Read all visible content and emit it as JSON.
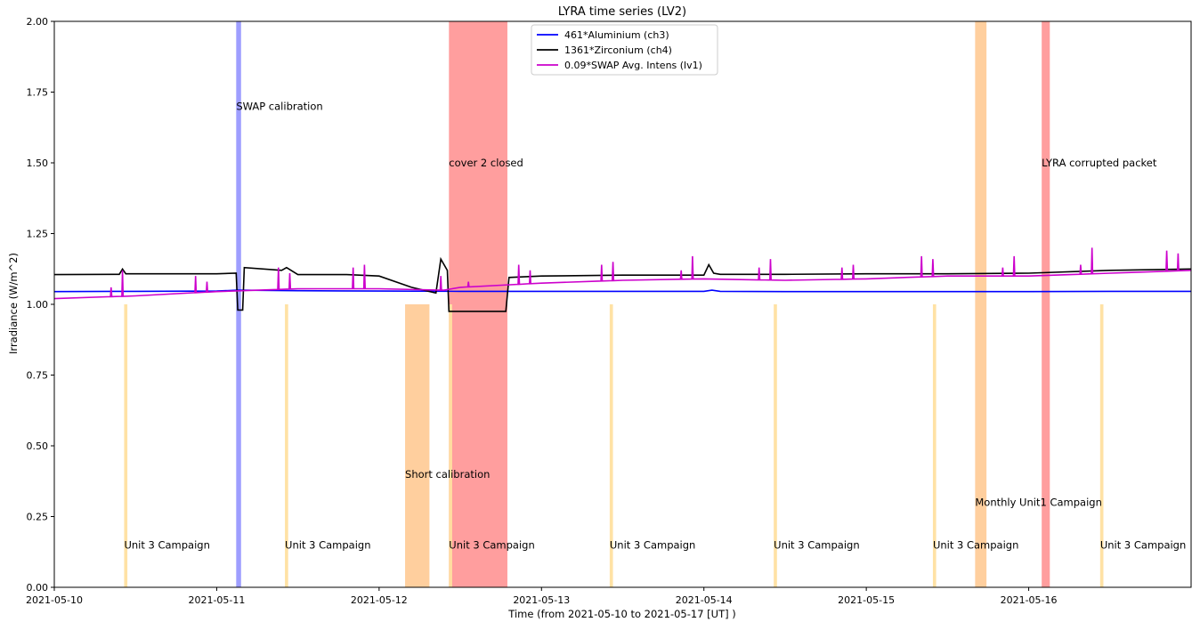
{
  "chart_data": {
    "type": "line",
    "title": "LYRA time series (LV2)",
    "xlabel": "Time (from 2021-05-10 to 2021-05-17 [UT] )",
    "ylabel": "Irradiance (W/m^2)",
    "xlim_days": [
      0,
      7
    ],
    "ylim": [
      0,
      2.0
    ],
    "x_tick_labels": [
      "2021-05-10",
      "2021-05-11",
      "2021-05-12",
      "2021-05-13",
      "2021-05-14",
      "2021-05-15",
      "2021-05-16"
    ],
    "x_tick_days": [
      0,
      1,
      2,
      3,
      4,
      5,
      6
    ],
    "y_ticks": [
      0.0,
      0.25,
      0.5,
      0.75,
      1.0,
      1.25,
      1.5,
      1.75,
      2.0
    ],
    "y_tick_labels": [
      "0.00",
      "0.25",
      "0.50",
      "0.75",
      "1.00",
      "1.25",
      "1.50",
      "1.75",
      "2.00"
    ],
    "legend_position": "top-center",
    "colors": {
      "aluminium": "#0000ff",
      "zirconium": "#000000",
      "swap": "#cc00cc",
      "swap_calibration": "#9999ff",
      "cover_closed": "#ff9999",
      "campaign": "#ffcc99",
      "unit3": "#ffe0a0"
    },
    "series": [
      {
        "name": "461*Aluminium (ch3)",
        "color": "#0000ff",
        "x": [
          0,
          0.5,
          1.0,
          1.13,
          1.5,
          2.0,
          2.5,
          3.0,
          3.5,
          4.0,
          4.05,
          4.1,
          4.5,
          5.0,
          5.5,
          6.0,
          6.5,
          7.0
        ],
        "y": [
          1.045,
          1.046,
          1.047,
          1.05,
          1.048,
          1.047,
          1.046,
          1.046,
          1.046,
          1.046,
          1.05,
          1.046,
          1.045,
          1.045,
          1.045,
          1.045,
          1.046,
          1.046
        ]
      },
      {
        "name": "1361*Zirconium (ch4)",
        "color": "#000000",
        "x": [
          0,
          0.4,
          0.42,
          0.44,
          0.6,
          1.0,
          1.12,
          1.13,
          1.16,
          1.17,
          1.4,
          1.43,
          1.5,
          1.8,
          2.0,
          2.2,
          2.35,
          2.38,
          2.42,
          2.43,
          2.44,
          2.78,
          2.8,
          3.0,
          3.5,
          4.0,
          4.03,
          4.06,
          4.1,
          4.5,
          5.0,
          5.5,
          6.0,
          6.5,
          7.0
        ],
        "y": [
          1.105,
          1.106,
          1.125,
          1.108,
          1.108,
          1.108,
          1.11,
          0.98,
          0.98,
          1.13,
          1.12,
          1.13,
          1.105,
          1.105,
          1.1,
          1.06,
          1.04,
          1.16,
          1.12,
          0.975,
          0.975,
          0.975,
          1.095,
          1.1,
          1.103,
          1.103,
          1.14,
          1.11,
          1.106,
          1.106,
          1.108,
          1.108,
          1.11,
          1.12,
          1.125
        ]
      },
      {
        "name": "0.09*SWAP Avg. Intens (lv1)",
        "color": "#cc00cc",
        "x": [
          0,
          0.5,
          1.0,
          1.5,
          2.0,
          2.4,
          2.5,
          3.0,
          3.5,
          4.0,
          4.5,
          5.0,
          5.5,
          6.0,
          6.5,
          7.0
        ],
        "y": [
          1.02,
          1.03,
          1.045,
          1.055,
          1.055,
          1.05,
          1.06,
          1.075,
          1.085,
          1.09,
          1.085,
          1.09,
          1.1,
          1.1,
          1.11,
          1.12
        ],
        "spikes_x": [
          0.35,
          0.42,
          0.87,
          0.94,
          1.38,
          1.45,
          1.84,
          1.91,
          2.38,
          2.55,
          2.86,
          2.93,
          3.37,
          3.44,
          3.86,
          3.93,
          4.34,
          4.41,
          4.85,
          4.92,
          5.34,
          5.41,
          5.84,
          5.91,
          6.32,
          6.39,
          6.85,
          6.92
        ],
        "spikes_y": [
          1.06,
          1.12,
          1.1,
          1.08,
          1.13,
          1.11,
          1.13,
          1.14,
          1.1,
          1.08,
          1.14,
          1.12,
          1.14,
          1.15,
          1.12,
          1.17,
          1.13,
          1.16,
          1.13,
          1.14,
          1.17,
          1.16,
          1.13,
          1.17,
          1.14,
          1.2,
          1.19,
          1.18
        ]
      }
    ],
    "bands": [
      {
        "start": 1.12,
        "end": 1.15,
        "ymin": 0,
        "ymax": 2.0,
        "color": "#9999ff",
        "label": "SWAP calibration",
        "label_y": 1.7
      },
      {
        "start": 2.43,
        "end": 2.79,
        "ymin": 0,
        "ymax": 2.0,
        "color": "#ff9999",
        "label": "cover 2 closed",
        "label_y": 1.5
      },
      {
        "start": 6.08,
        "end": 6.13,
        "ymin": 0,
        "ymax": 2.0,
        "color": "#ff9999",
        "label": "LYRA corrupted packet",
        "label_y": 1.5
      },
      {
        "start": 5.67,
        "end": 5.74,
        "ymin": 0,
        "ymax": 2.0,
        "color": "#ffcc99",
        "label": "Monthly Unit1 Campaign",
        "label_y": 0.3
      },
      {
        "start": 2.16,
        "end": 2.31,
        "ymin": 0,
        "ymax": 1.0,
        "color": "#ffcc99",
        "label": "Short calibration",
        "label_y": 0.4
      },
      {
        "start": 0.43,
        "end": 0.45,
        "ymin": 0,
        "ymax": 1.0,
        "color": "#ffe0a0",
        "label": "Unit 3 Campaign",
        "label_y": 0.15
      },
      {
        "start": 1.42,
        "end": 1.44,
        "ymin": 0,
        "ymax": 1.0,
        "color": "#ffe0a0",
        "label": "Unit 3 Campaign",
        "label_y": 0.15
      },
      {
        "start": 2.43,
        "end": 2.45,
        "ymin": 0,
        "ymax": 1.0,
        "color": "#ffe0a0",
        "label": "Unit 3 Campaign",
        "label_y": 0.15
      },
      {
        "start": 3.42,
        "end": 3.44,
        "ymin": 0,
        "ymax": 1.0,
        "color": "#ffe0a0",
        "label": "Unit 3 Campaign",
        "label_y": 0.15
      },
      {
        "start": 4.43,
        "end": 4.45,
        "ymin": 0,
        "ymax": 1.0,
        "color": "#ffe0a0",
        "label": "Unit 3 Campaign",
        "label_y": 0.15
      },
      {
        "start": 5.41,
        "end": 5.43,
        "ymin": 0,
        "ymax": 1.0,
        "color": "#ffe0a0",
        "label": "Unit 3 Campaign",
        "label_y": 0.15
      },
      {
        "start": 6.44,
        "end": 6.46,
        "ymin": 0,
        "ymax": 1.0,
        "color": "#ffe0a0",
        "label": "Unit 3 Campaign",
        "label_y": 0.15
      }
    ]
  }
}
